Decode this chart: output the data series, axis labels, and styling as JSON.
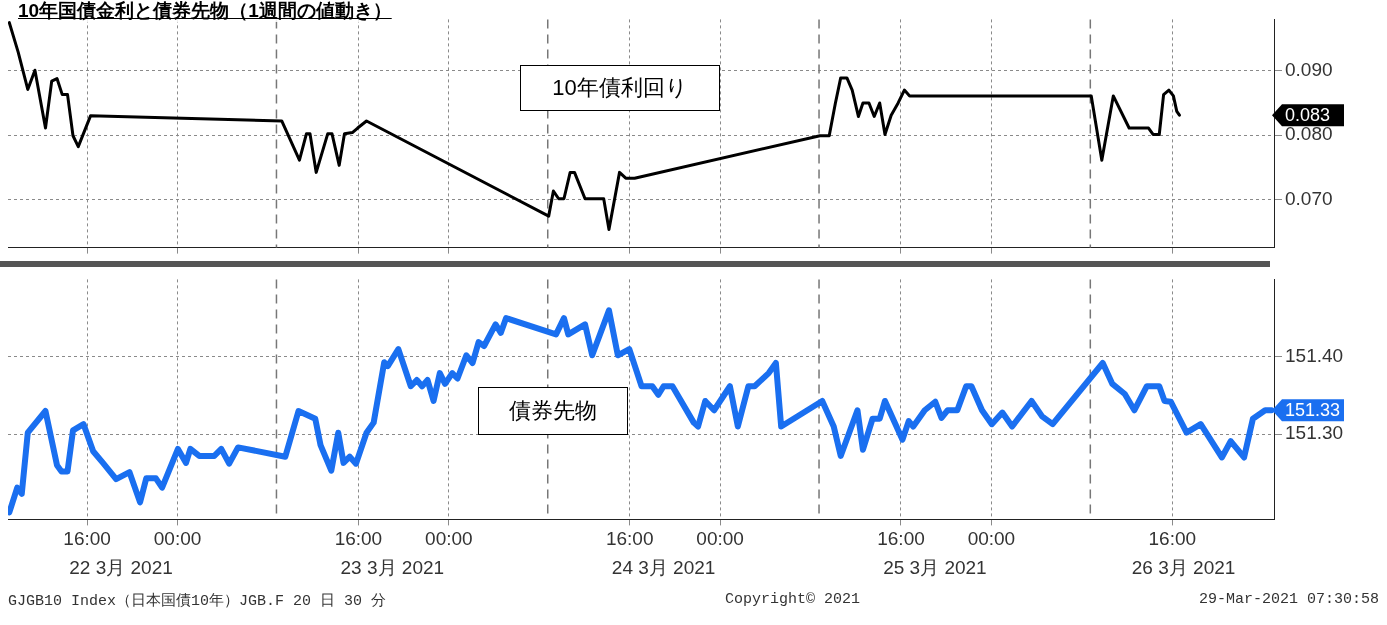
{
  "chart_data": [
    {
      "type": "line",
      "title": "10年国債金利と債券先物（1週間の値動き）",
      "marker": "none",
      "grid": true,
      "tick_labels": "y",
      "series": [
        {
          "name": "10年債利回り",
          "color": "#000000",
          "x": [
            "2021-03-22T09:07",
            "2021-03-22T09:54",
            "2021-03-22T10:45",
            "2021-03-22T11:23",
            "2021-03-22T12:19",
            "2021-03-22T12:52",
            "2021-03-22T13:20",
            "2021-03-22T13:48",
            "2021-03-22T14:16",
            "2021-03-22T14:45",
            "2021-03-22T15:13",
            "2021-03-22T16:18",
            "2021-03-23T09:13",
            "2021-03-23T10:47",
            "2021-03-23T11:24",
            "2021-03-23T11:43",
            "2021-03-23T12:16",
            "2021-03-23T13:17",
            "2021-03-23T13:40",
            "2021-03-23T14:18",
            "2021-03-23T14:46",
            "2021-03-23T15:28",
            "2021-03-23T15:56",
            "2021-03-23T16:43",
            "2021-03-24T08:50",
            "2021-03-24T09:15",
            "2021-03-24T09:43",
            "2021-03-24T10:11",
            "2021-03-24T10:44",
            "2021-03-24T11:07",
            "2021-03-24T12:03",
            "2021-03-24T13:42",
            "2021-03-24T14:10",
            "2021-03-24T15:06",
            "2021-03-24T15:39",
            "2021-03-24T16:26",
            "2021-03-25T08:50",
            "2021-03-25T09:39",
            "2021-03-25T10:12",
            "2021-03-25T10:40",
            "2021-03-25T11:13",
            "2021-03-25T11:41",
            "2021-03-25T12:14",
            "2021-03-25T12:38",
            "2021-03-25T13:10",
            "2021-03-25T13:38",
            "2021-03-25T14:07",
            "2021-03-25T14:35",
            "2021-03-25T15:08",
            "2021-03-25T15:45",
            "2021-03-25T16:18",
            "2021-03-25T16:46",
            "2021-03-26T08:50",
            "2021-03-26T09:46",
            "2021-03-26T10:47",
            "2021-03-26T12:11",
            "2021-03-26T13:54",
            "2021-03-26T14:18",
            "2021-03-26T14:51",
            "2021-03-26T15:14",
            "2021-03-26T15:42",
            "2021-03-26T16:06",
            "2021-03-26T16:24",
            "2021-03-26T16:38"
          ],
          "values": [
            0.0975,
            0.0929,
            0.0871,
            0.0901,
            0.0811,
            0.0884,
            0.0888,
            0.0863,
            0.0863,
            0.0799,
            0.0782,
            0.083,
            0.0822,
            0.0761,
            0.0802,
            0.0802,
            0.0742,
            0.0802,
            0.0802,
            0.0753,
            0.0802,
            0.0804,
            0.0811,
            0.0822,
            0.0674,
            0.0713,
            0.0701,
            0.0701,
            0.0742,
            0.0742,
            0.0701,
            0.0701,
            0.0653,
            0.0742,
            0.0733,
            0.0733,
            0.0799,
            0.0799,
            0.085,
            0.0889,
            0.0889,
            0.087,
            0.0829,
            0.085,
            0.085,
            0.0829,
            0.085,
            0.0801,
            0.0831,
            0.085,
            0.087,
            0.0861,
            0.0861,
            0.0761,
            0.0861,
            0.0811,
            0.0811,
            0.0801,
            0.0801,
            0.0863,
            0.087,
            0.0861,
            0.0837,
            0.0831
          ]
        }
      ],
      "xlim": [
        "2021-03-22T09:00",
        "2021-03-27T01:00"
      ],
      "xticks": [
        "2021-03-22T16:00",
        "2021-03-23T00:00",
        "2021-03-23T16:00",
        "2021-03-24T00:00",
        "2021-03-24T16:00",
        "2021-03-25T00:00",
        "2021-03-25T16:00",
        "2021-03-26T00:00",
        "2021-03-26T16:00"
      ],
      "ylim": [
        0.0625,
        0.098
      ],
      "yticks": [
        {
          "value": 0.07,
          "label": "0.070"
        },
        {
          "value": 0.08,
          "label": "0.080"
        },
        {
          "value": 0.09,
          "label": "0.090"
        }
      ],
      "ref_lines": [
        {
          "axis": "x",
          "value": "2021-03-23T08:45",
          "line_style": "dashed",
          "color": "#777777"
        },
        {
          "axis": "x",
          "value": "2021-03-24T08:45",
          "line_style": "dashed",
          "color": "#777777"
        },
        {
          "axis": "x",
          "value": "2021-03-25T08:45",
          "line_style": "dashed",
          "color": "#777777"
        },
        {
          "axis": "x",
          "value": "2021-03-26T08:45",
          "line_style": "dashed",
          "color": "#777777"
        }
      ],
      "annotations": [
        "0.083"
      ]
    },
    {
      "type": "line",
      "marker": "none",
      "grid": true,
      "series": [
        {
          "name": "債券先物",
          "color": "#1a6ff0",
          "x": [
            "2021-03-22T09:07",
            "2021-03-22T09:49",
            "2021-03-22T10:13",
            "2021-03-22T10:45",
            "2021-03-22T12:19",
            "2021-03-22T13:20",
            "2021-03-22T13:44",
            "2021-03-22T14:16",
            "2021-03-22T14:45",
            "2021-03-22T15:41",
            "2021-03-22T16:32",
            "2021-03-22T17:24",
            "2021-03-22T18:34",
            "2021-03-22T19:45",
            "2021-03-22T20:41",
            "2021-03-22T21:14",
            "2021-03-22T22:05",
            "2021-03-22T22:38",
            "2021-03-23T00:02",
            "2021-03-23T00:45",
            "2021-03-23T01:08",
            "2021-03-23T01:55",
            "2021-03-23T03:15",
            "2021-03-23T03:52",
            "2021-03-23T04:34",
            "2021-03-23T05:21",
            "2021-03-23T09:32",
            "2021-03-23T10:42",
            "2021-03-23T12:11",
            "2021-03-23T12:39",
            "2021-03-23T13:36",
            "2021-03-23T14:13",
            "2021-03-23T14:41",
            "2021-03-23T15:14",
            "2021-03-23T15:47",
            "2021-03-23T16:43",
            "2021-03-23T17:21",
            "2021-03-23T18:17",
            "2021-03-23T18:36",
            "2021-03-23T19:32",
            "2021-03-23T20:38",
            "2021-03-23T21:10",
            "2021-03-23T21:38",
            "2021-03-23T22:07",
            "2021-03-23T22:39",
            "2021-03-23T23:12",
            "2021-03-23T23:40",
            "2021-03-24T00:18",
            "2021-03-24T00:46",
            "2021-03-24T01:33",
            "2021-03-24T02:06",
            "2021-03-24T02:38",
            "2021-03-24T03:07",
            "2021-03-24T04:08",
            "2021-03-24T04:36",
            "2021-03-24T05:04",
            "2021-03-24T09:29",
            "2021-03-24T10:11",
            "2021-03-24T10:34",
            "2021-03-24T12:03",
            "2021-03-24T12:41",
            "2021-03-24T14:10",
            "2021-03-24T14:57",
            "2021-03-24T15:58",
            "2021-03-24T17:03",
            "2021-03-24T18:00",
            "2021-03-24T18:32",
            "2021-03-24T19:00",
            "2021-03-24T19:47",
            "2021-03-24T21:40",
            "2021-03-24T22:03",
            "2021-03-24T22:41",
            "2021-03-24T23:28",
            "2021-03-25T00:52",
            "2021-03-25T01:34",
            "2021-03-25T02:30",
            "2021-03-25T03:03",
            "2021-03-25T04:18",
            "2021-03-25T04:56",
            "2021-03-25T05:24",
            "2021-03-25T09:02",
            "2021-03-25T10:03",
            "2021-03-25T10:40",
            "2021-03-25T12:09",
            "2021-03-25T12:38",
            "2021-03-25T13:29",
            "2021-03-25T14:07",
            "2021-03-25T14:35",
            "2021-03-25T16:08",
            "2021-03-25T16:41",
            "2021-03-25T17:05",
            "2021-03-25T18:06",
            "2021-03-25T19:02",
            "2021-03-25T19:35",
            "2021-03-25T20:08",
            "2021-03-25T20:59",
            "2021-03-25T21:46",
            "2021-03-25T22:14",
            "2021-03-25T23:10",
            "2021-03-26T00:02",
            "2021-03-26T00:58",
            "2021-03-26T01:50",
            "2021-03-26T03:33",
            "2021-03-26T04:29",
            "2021-03-26T05:25",
            "2021-03-26T09:51",
            "2021-03-26T10:42",
            "2021-03-26T11:48",
            "2021-03-26T12:39",
            "2021-03-26T13:45",
            "2021-03-26T14:51",
            "2021-03-26T15:19",
            "2021-03-26T15:52",
            "2021-03-26T17:16",
            "2021-03-26T18:31",
            "2021-03-26T20:23",
            "2021-03-26T21:10",
            "2021-03-26T22:21",
            "2021-03-26T23:08",
            "2021-03-27T00:13",
            "2021-03-27T00:46"
          ],
          "values": [
            151.199,
            151.231,
            151.223,
            151.302,
            151.33,
            151.26,
            151.252,
            151.252,
            151.305,
            151.313,
            151.278,
            151.263,
            151.242,
            151.251,
            151.212,
            151.243,
            151.243,
            151.231,
            151.281,
            151.263,
            151.281,
            151.272,
            151.272,
            151.281,
            151.262,
            151.283,
            151.271,
            151.33,
            151.32,
            151.286,
            151.253,
            151.302,
            151.263,
            151.271,
            151.262,
            151.302,
            151.315,
            151.393,
            151.388,
            151.41,
            151.362,
            151.37,
            151.362,
            151.37,
            151.343,
            151.379,
            151.365,
            151.379,
            151.372,
            151.402,
            151.392,
            151.419,
            151.414,
            151.442,
            151.431,
            151.45,
            151.429,
            151.45,
            151.429,
            151.442,
            151.402,
            151.46,
            151.402,
            151.41,
            151.362,
            151.362,
            151.351,
            151.362,
            151.362,
            151.315,
            151.31,
            151.343,
            151.331,
            151.362,
            151.31,
            151.362,
            151.362,
            151.379,
            151.392,
            151.31,
            151.343,
            151.31,
            151.272,
            151.331,
            151.28,
            151.32,
            151.32,
            151.343,
            151.293,
            151.317,
            151.31,
            151.331,
            151.342,
            151.321,
            151.331,
            151.331,
            151.362,
            151.362,
            151.331,
            151.313,
            151.328,
            151.31,
            151.343,
            151.323,
            151.313,
            151.392,
            151.365,
            151.352,
            151.331,
            151.362,
            151.362,
            151.343,
            151.342,
            151.302,
            151.313,
            151.27,
            151.291,
            151.27,
            151.32,
            151.331,
            151.331
          ]
        }
      ],
      "xlim": [
        "2021-03-22T09:00",
        "2021-03-27T01:00"
      ],
      "xticks": [
        {
          "value": "2021-03-22T16:00",
          "label": "16:00"
        },
        {
          "value": "2021-03-23T00:00",
          "label": "00:00"
        },
        {
          "value": "2021-03-23T16:00",
          "label": "16:00"
        },
        {
          "value": "2021-03-24T00:00",
          "label": "00:00"
        },
        {
          "value": "2021-03-24T16:00",
          "label": "16:00"
        },
        {
          "value": "2021-03-25T00:00",
          "label": "00:00"
        },
        {
          "value": "2021-03-25T16:00",
          "label": "16:00"
        },
        {
          "value": "2021-03-26T00:00",
          "label": "00:00"
        },
        {
          "value": "2021-03-26T16:00",
          "label": "16:00"
        }
      ],
      "x2lim": [
        "2021-03-22T09:00",
        "2021-03-27T01:00"
      ],
      "x2ticks": [
        {
          "value": "2021-03-22T19:00",
          "label": "22 3月 2021"
        },
        {
          "value": "2021-03-23T19:00",
          "label": "23 3月 2021"
        },
        {
          "value": "2021-03-24T19:00",
          "label": "24 3月 2021"
        },
        {
          "value": "2021-03-25T19:00",
          "label": "25 3月 2021"
        },
        {
          "value": "2021-03-26T17:00",
          "label": "26 3月 2021"
        }
      ],
      "ylim": [
        151.19,
        151.5
      ],
      "yticks": [
        {
          "value": 151.3,
          "label": "151.30"
        },
        {
          "value": 151.4,
          "label": "151.40"
        }
      ],
      "ref_lines": [
        {
          "axis": "x",
          "value": "2021-03-23T08:45",
          "line_style": "dashed",
          "color": "#777777"
        },
        {
          "axis": "x",
          "value": "2021-03-24T08:45",
          "line_style": "dashed",
          "color": "#777777"
        },
        {
          "axis": "x",
          "value": "2021-03-25T08:45",
          "line_style": "dashed",
          "color": "#777777"
        },
        {
          "axis": "x",
          "value": "2021-03-26T08:45",
          "line_style": "dashed",
          "color": "#777777"
        }
      ],
      "annotations": [
        "151.33",
        "GJGB10 Index（日本国債10年）JGB.F 20 日 30 分",
        "Copyright© 2021",
        "29-Mar-2021 07:30:58"
      ]
    }
  ]
}
